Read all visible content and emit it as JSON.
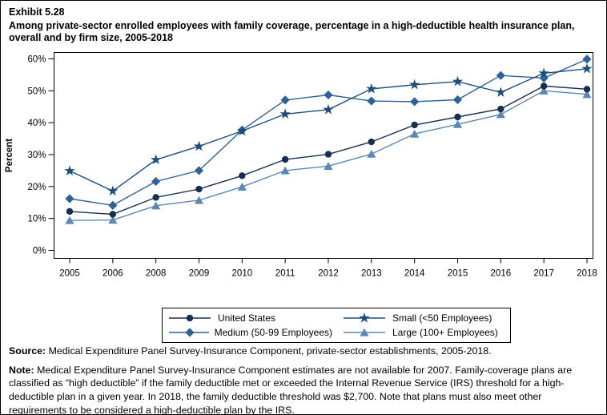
{
  "header": {
    "exhibit": "Exhibit 5.28",
    "title": "Among private-sector enrolled employees with family coverage, percentage in a high-deductible health insurance plan, overall and by firm size, 2005-2018"
  },
  "chart_data": {
    "type": "line",
    "title": "",
    "xlabel": "",
    "ylabel": "Percent",
    "ylim": [
      0,
      60
    ],
    "yticks": [
      0,
      10,
      20,
      30,
      40,
      50,
      60
    ],
    "ytick_suffix": "%",
    "grid": false,
    "legend_position": "bottom",
    "note_missing_year": "2007 estimates not available",
    "categories": [
      "2005",
      "2006",
      "2008",
      "2009",
      "2010",
      "2011",
      "2012",
      "2013",
      "2014",
      "2015",
      "2016",
      "2017",
      "2018"
    ],
    "series": [
      {
        "name": "United States",
        "marker": "circle",
        "color": "#17304f",
        "z": 1,
        "values": [
          12.2,
          11.3,
          16.6,
          19.2,
          23.4,
          28.5,
          30.1,
          34.0,
          39.3,
          41.8,
          44.3,
          51.5,
          50.5
        ]
      },
      {
        "name": "Small (<50 Employees)",
        "marker": "star",
        "color": "#1d4d7c",
        "z": 3,
        "values": [
          24.9,
          18.6,
          28.4,
          32.6,
          37.4,
          42.7,
          44.1,
          50.6,
          51.9,
          52.9,
          49.5,
          55.5,
          56.9
        ]
      },
      {
        "name": "Medium (50-99 Employees)",
        "marker": "diamond",
        "color": "#2f6295",
        "z": 2,
        "values": [
          16.2,
          14.1,
          21.6,
          25.0,
          37.7,
          47.1,
          48.7,
          46.8,
          46.6,
          47.2,
          54.8,
          54.0,
          59.9
        ]
      },
      {
        "name": "Large (100+ Employees)",
        "marker": "triangle",
        "color": "#5b87b5",
        "z": 0,
        "values": [
          9.4,
          9.5,
          14.0,
          15.7,
          19.9,
          25.0,
          26.4,
          30.2,
          36.5,
          39.5,
          42.6,
          50.0,
          48.9
        ]
      }
    ]
  },
  "legend": {
    "items": [
      {
        "label": "United States",
        "marker": "circle",
        "color": "#17304f"
      },
      {
        "label": "Small (<50 Employees)",
        "marker": "star",
        "color": "#1d4d7c"
      },
      {
        "label": "Medium (50-99 Employees)",
        "marker": "diamond",
        "color": "#2f6295"
      },
      {
        "label": "Large (100+ Employees)",
        "marker": "triangle",
        "color": "#5b87b5"
      }
    ]
  },
  "footer": {
    "source_label": "Source:",
    "source_text": " Medical Expenditure Panel Survey-Insurance Component, private-sector establishments, 2005-2018.",
    "note_label": "Note:",
    "note_text": " Medical Expenditure Panel Survey-Insurance Component estimates are not available for 2007. Family-coverage plans are classified as “high deductible” if the family deductible met or exceeded the Internal Revenue Service (IRS) threshold for a high-deductible plan in a given year. In 2018, the family deductible threshold was $2,700. Note that plans must also meet other requirements to be considered a high-deductible plan by the IRS."
  }
}
